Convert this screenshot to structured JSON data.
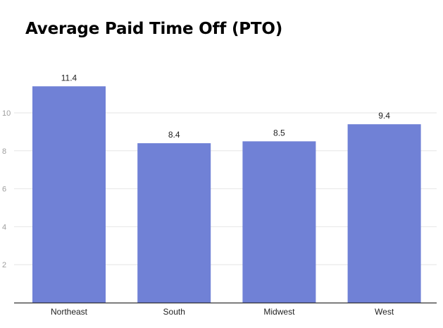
{
  "chart_data": {
    "type": "bar",
    "title": "Average Paid Time Off (PTO)",
    "categories": [
      "Northeast",
      "South",
      "Midwest",
      "West"
    ],
    "values": [
      11.4,
      8.4,
      8.5,
      9.4
    ],
    "data_labels": [
      "11.4",
      "8.4",
      "8.5",
      "9.4"
    ],
    "ylim": [
      0,
      12
    ],
    "yticks": [
      2,
      4,
      6,
      8,
      10
    ],
    "ytick_labels": [
      "2",
      "4",
      "6",
      "8",
      "10"
    ],
    "xlabel": "",
    "ylabel": "",
    "grid": true,
    "legend": "none",
    "colors": {
      "bar": "#7081d6",
      "grid": "#e6e6e6",
      "axis": "#333333"
    }
  }
}
